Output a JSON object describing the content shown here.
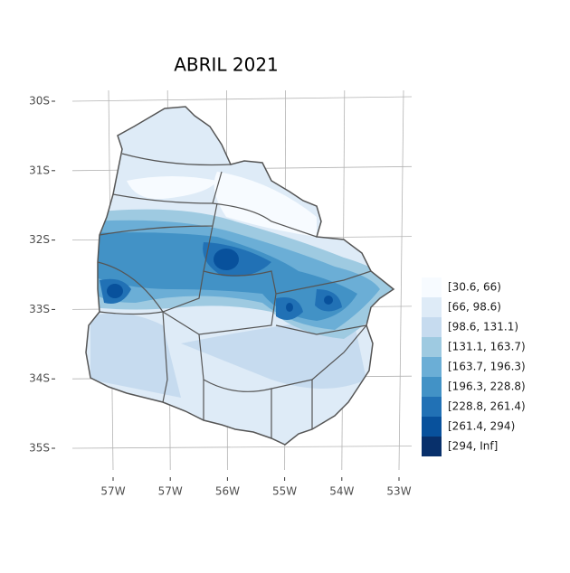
{
  "title": "ABRIL 2021",
  "y_axis": {
    "ticks": [
      "30S",
      "31S",
      "32S",
      "33S",
      "34S",
      "35S"
    ]
  },
  "x_axis": {
    "ticks": [
      "57W",
      "57W",
      "56W",
      "55W",
      "54W",
      "53W"
    ]
  },
  "legend": {
    "items": [
      {
        "label": "[30.6, 66)",
        "color": "#f7fbff"
      },
      {
        "label": "[66, 98.6)",
        "color": "#deebf7"
      },
      {
        "label": "[98.6, 131.1)",
        "color": "#c6dbef"
      },
      {
        "label": "[131.1, 163.7)",
        "color": "#9ecae1"
      },
      {
        "label": "[163.7, 196.3)",
        "color": "#6baed6"
      },
      {
        "label": "[196.3, 228.8)",
        "color": "#4292c6"
      },
      {
        "label": "[228.8, 261.4)",
        "color": "#2171b5"
      },
      {
        "label": "[261.4, 294)",
        "color": "#08519c"
      },
      {
        "label": "[294, Inf]",
        "color": "#08306b"
      }
    ]
  }
}
